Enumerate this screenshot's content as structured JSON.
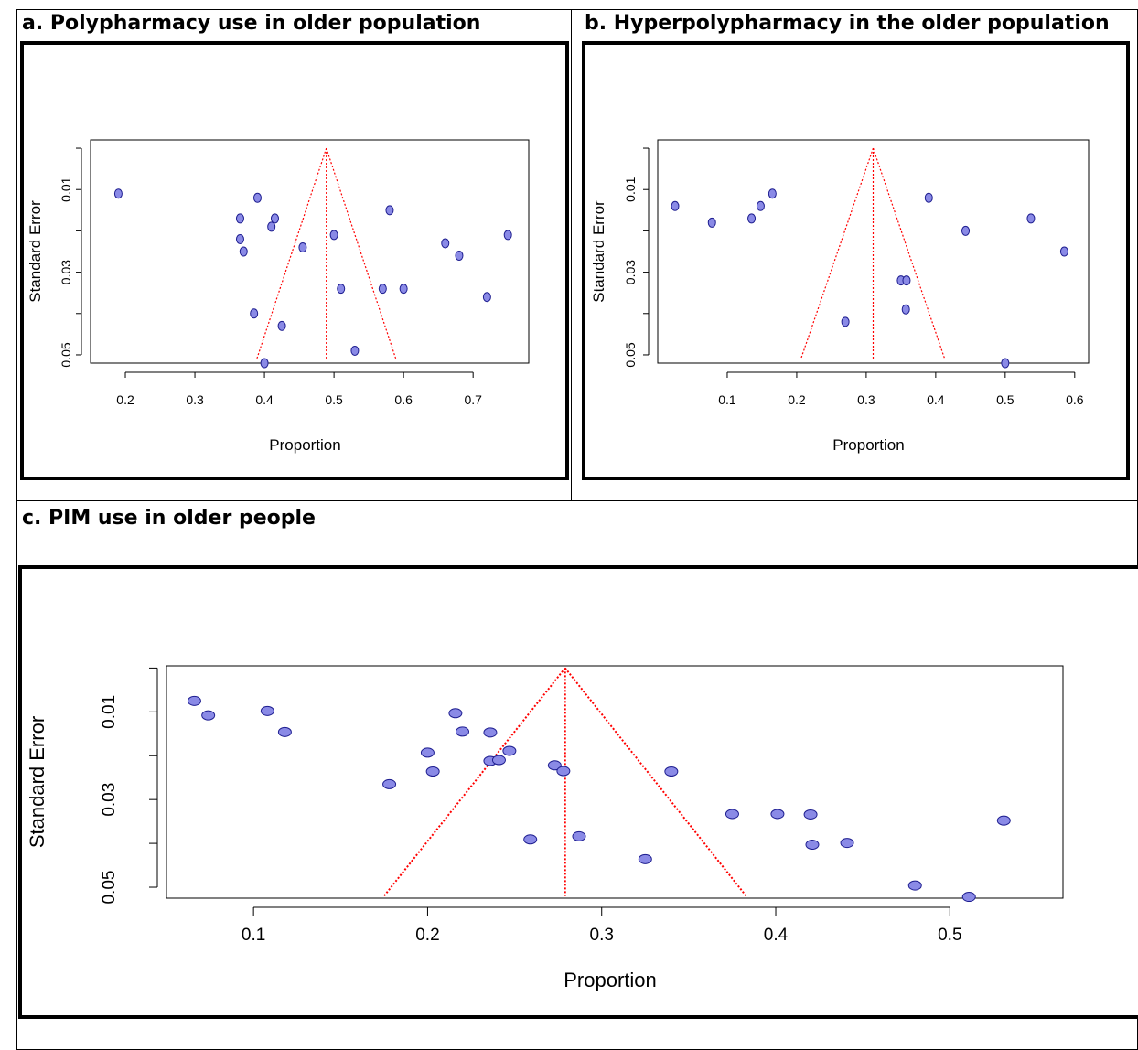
{
  "panels": [
    {
      "heading": "a. Polypharmacy use in older population"
    },
    {
      "heading": "b. Hyperpolypharmacy in the older population"
    },
    {
      "heading": "c. PIM use in older people"
    }
  ],
  "colors": {
    "point_fill": "#8a8ae6",
    "point_stroke": "#1e1e90",
    "funnel": "#ff0000",
    "axis": "#000000"
  },
  "chart_data": [
    {
      "type": "scatter",
      "title": "",
      "xlabel": "Proportion",
      "ylabel": "Standard Error",
      "xlim": [
        0.15,
        0.78
      ],
      "ylim": [
        0.052,
        -0.002
      ],
      "y_reversed": true,
      "xticks": [
        "0.2",
        "0.3",
        "0.4",
        "0.5",
        "0.6",
        "0.7"
      ],
      "xtick_values": [
        0.2,
        0.3,
        0.4,
        0.5,
        0.6,
        0.7
      ],
      "yticks": [
        "0.01",
        "0.03",
        "0.05"
      ],
      "ytick_values": [
        0.01,
        0.03,
        0.05
      ],
      "yticks_minor": [
        0.0,
        0.01,
        0.02,
        0.03,
        0.04,
        0.05
      ],
      "funnel": {
        "center": 0.489,
        "apex_se": 0.0,
        "base_se": 0.051,
        "left": 0.389,
        "right": 0.589
      },
      "points": [
        [
          0.19,
          0.011
        ],
        [
          0.365,
          0.017
        ],
        [
          0.39,
          0.012
        ],
        [
          0.365,
          0.022
        ],
        [
          0.37,
          0.025
        ],
        [
          0.41,
          0.019
        ],
        [
          0.415,
          0.017
        ],
        [
          0.455,
          0.024
        ],
        [
          0.5,
          0.021
        ],
        [
          0.58,
          0.015
        ],
        [
          0.66,
          0.023
        ],
        [
          0.68,
          0.026
        ],
        [
          0.75,
          0.021
        ],
        [
          0.51,
          0.034
        ],
        [
          0.57,
          0.034
        ],
        [
          0.6,
          0.034
        ],
        [
          0.72,
          0.036
        ],
        [
          0.385,
          0.04
        ],
        [
          0.425,
          0.043
        ],
        [
          0.53,
          0.049
        ],
        [
          0.4,
          0.052
        ]
      ]
    },
    {
      "type": "scatter",
      "title": "",
      "xlabel": "Proportion",
      "ylabel": "Standard Error",
      "xlim": [
        0.0,
        0.62
      ],
      "ylim": [
        0.052,
        -0.002
      ],
      "y_reversed": true,
      "xticks": [
        "0.1",
        "0.2",
        "0.3",
        "0.4",
        "0.5",
        "0.6"
      ],
      "xtick_values": [
        0.1,
        0.2,
        0.3,
        0.4,
        0.5,
        0.6
      ],
      "yticks": [
        "0.01",
        "0.03",
        "0.05"
      ],
      "ytick_values": [
        0.01,
        0.03,
        0.05
      ],
      "yticks_minor": [
        0.0,
        0.01,
        0.02,
        0.03,
        0.04,
        0.05
      ],
      "funnel": {
        "center": 0.31,
        "apex_se": 0.0,
        "base_se": 0.051,
        "left": 0.206,
        "right": 0.413
      },
      "points": [
        [
          0.025,
          0.014
        ],
        [
          0.078,
          0.018
        ],
        [
          0.135,
          0.017
        ],
        [
          0.148,
          0.014
        ],
        [
          0.165,
          0.011
        ],
        [
          0.39,
          0.012
        ],
        [
          0.443,
          0.02
        ],
        [
          0.537,
          0.017
        ],
        [
          0.585,
          0.025
        ],
        [
          0.35,
          0.032
        ],
        [
          0.358,
          0.032
        ],
        [
          0.357,
          0.039
        ],
        [
          0.27,
          0.042
        ],
        [
          0.5,
          0.052
        ]
      ]
    },
    {
      "type": "scatter",
      "title": "",
      "xlabel": "Proportion",
      "ylabel": "Standard Error",
      "xlim": [
        0.05,
        0.565
      ],
      "ylim": [
        0.0525,
        -0.0005
      ],
      "y_reversed": true,
      "xticks": [
        "0.1",
        "0.2",
        "0.3",
        "0.4",
        "0.5"
      ],
      "xtick_values": [
        0.1,
        0.2,
        0.3,
        0.4,
        0.5
      ],
      "yticks": [
        "0.01",
        "0.03",
        "0.05"
      ],
      "ytick_values": [
        0.01,
        0.03,
        0.05
      ],
      "yticks_minor": [
        0.0,
        0.01,
        0.02,
        0.03,
        0.04,
        0.05
      ],
      "funnel": {
        "center": 0.279,
        "apex_se": 0.0,
        "base_se": 0.052,
        "left": 0.175,
        "right": 0.383
      },
      "points": [
        [
          0.066,
          0.0075
        ],
        [
          0.074,
          0.0108
        ],
        [
          0.108,
          0.0098
        ],
        [
          0.118,
          0.0146
        ],
        [
          0.216,
          0.0103
        ],
        [
          0.22,
          0.0145
        ],
        [
          0.236,
          0.0147
        ],
        [
          0.2,
          0.0193
        ],
        [
          0.203,
          0.0236
        ],
        [
          0.236,
          0.0212
        ],
        [
          0.241,
          0.021
        ],
        [
          0.247,
          0.0189
        ],
        [
          0.178,
          0.0265
        ],
        [
          0.273,
          0.0222
        ],
        [
          0.278,
          0.0235
        ],
        [
          0.34,
          0.0236
        ],
        [
          0.375,
          0.0333
        ],
        [
          0.401,
          0.0333
        ],
        [
          0.42,
          0.0334
        ],
        [
          0.531,
          0.0348
        ],
        [
          0.259,
          0.0391
        ],
        [
          0.287,
          0.0384
        ],
        [
          0.325,
          0.0436
        ],
        [
          0.421,
          0.0403
        ],
        [
          0.441,
          0.0399
        ],
        [
          0.48,
          0.0496
        ],
        [
          0.511,
          0.0522
        ]
      ]
    }
  ]
}
